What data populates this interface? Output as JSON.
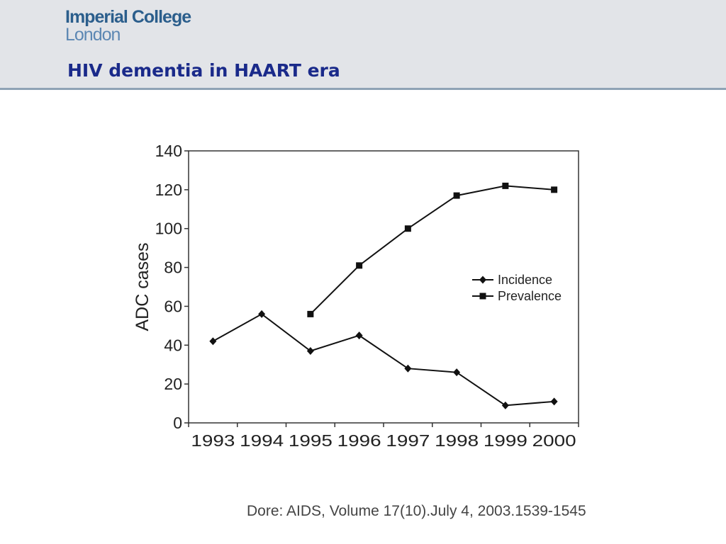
{
  "header": {
    "logo_line1": "Imperial College",
    "logo_line2": "London",
    "title": "HIV dementia in HAART era"
  },
  "citation": "Dore: AIDS, Volume 17(10).July 4, 2003.1539-1545",
  "chart_data": {
    "type": "line",
    "title": "",
    "xlabel": "",
    "ylabel": "ADC cases",
    "categories": [
      "1993",
      "1994",
      "1995",
      "1996",
      "1997",
      "1998",
      "1999",
      "2000"
    ],
    "ylim": [
      0,
      140
    ],
    "yticks": [
      0,
      20,
      40,
      60,
      80,
      100,
      120,
      140
    ],
    "grid": false,
    "legend": "center-right",
    "series": [
      {
        "name": "Incidence",
        "marker": "diamond",
        "values": [
          42,
          56,
          37,
          45,
          28,
          26,
          9,
          11
        ]
      },
      {
        "name": "Prevalence",
        "marker": "square",
        "values": [
          null,
          null,
          56,
          81,
          100,
          117,
          122,
          120
        ]
      }
    ]
  }
}
